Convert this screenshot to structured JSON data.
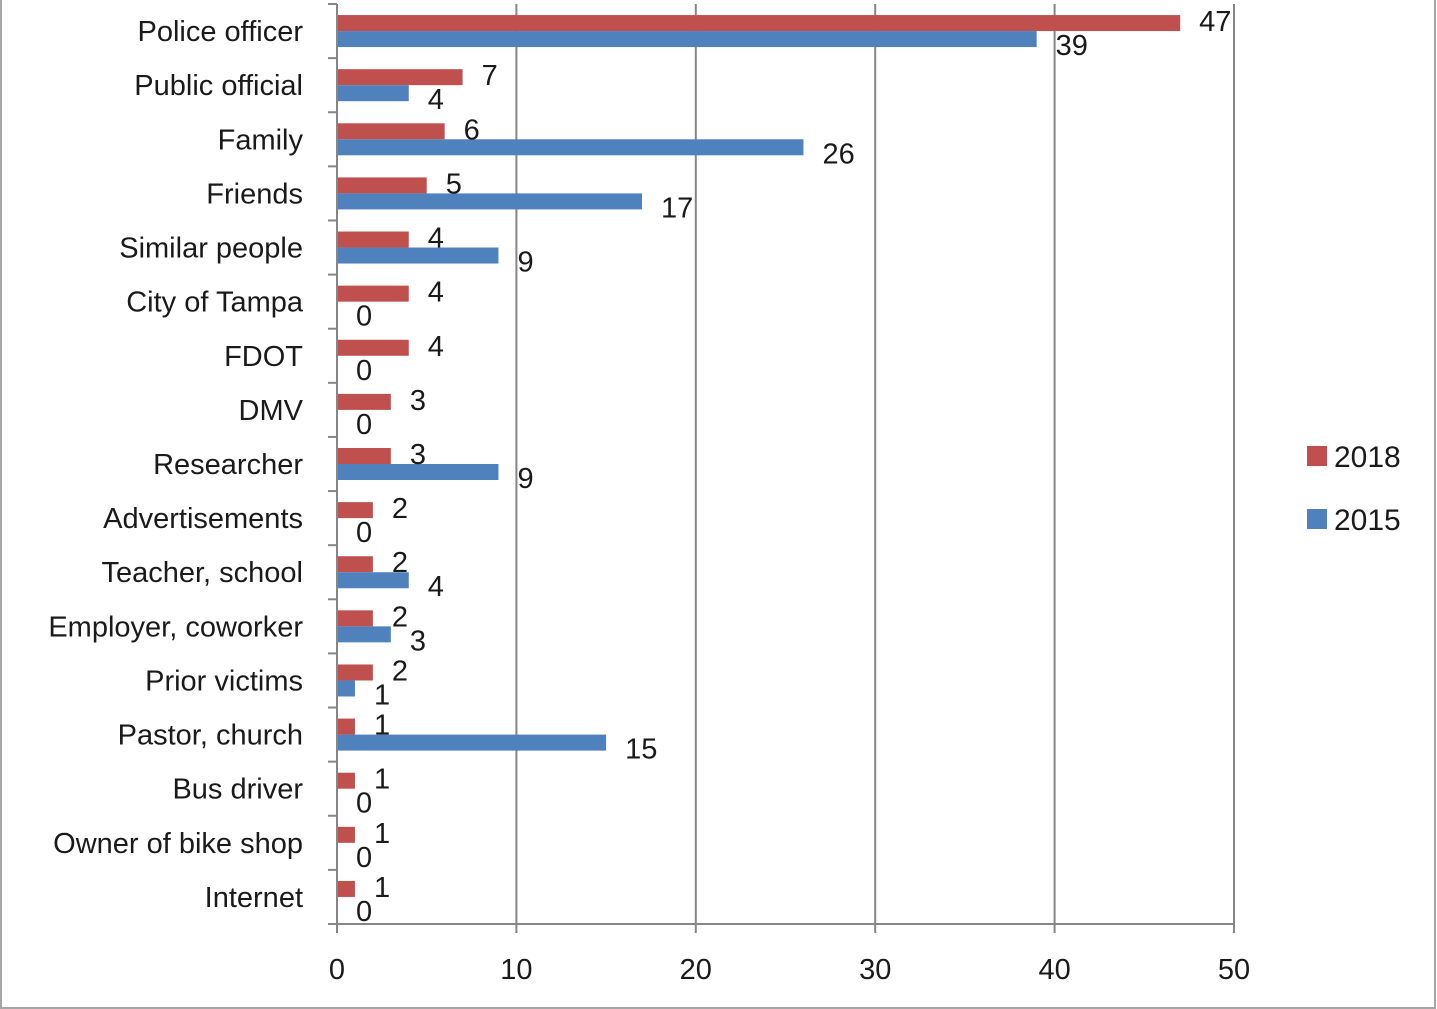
{
  "chart_data": {
    "type": "bar",
    "orientation": "horizontal",
    "categories": [
      "Police officer",
      "Public official",
      "Family",
      "Friends",
      "Similar people",
      "City of Tampa",
      "FDOT",
      "DMV",
      "Researcher",
      "Advertisements",
      "Teacher, school",
      "Employer, coworker",
      "Prior victims",
      "Pastor, church",
      "Bus driver",
      "Owner of bike shop",
      "Internet"
    ],
    "series": [
      {
        "name": "2018",
        "color": "#c0504d",
        "values": [
          47,
          7,
          6,
          5,
          4,
          4,
          4,
          3,
          3,
          2,
          2,
          2,
          2,
          1,
          1,
          1,
          1
        ]
      },
      {
        "name": "2015",
        "color": "#4f81bd",
        "values": [
          39,
          4,
          26,
          17,
          9,
          0,
          0,
          0,
          9,
          0,
          4,
          3,
          1,
          15,
          0,
          0,
          0
        ]
      }
    ],
    "xlim": [
      0,
      50
    ],
    "xticks": [
      "0",
      "10",
      "20",
      "30",
      "40",
      "50"
    ],
    "grid": "vertical",
    "legend": "right",
    "data_labels": true
  }
}
